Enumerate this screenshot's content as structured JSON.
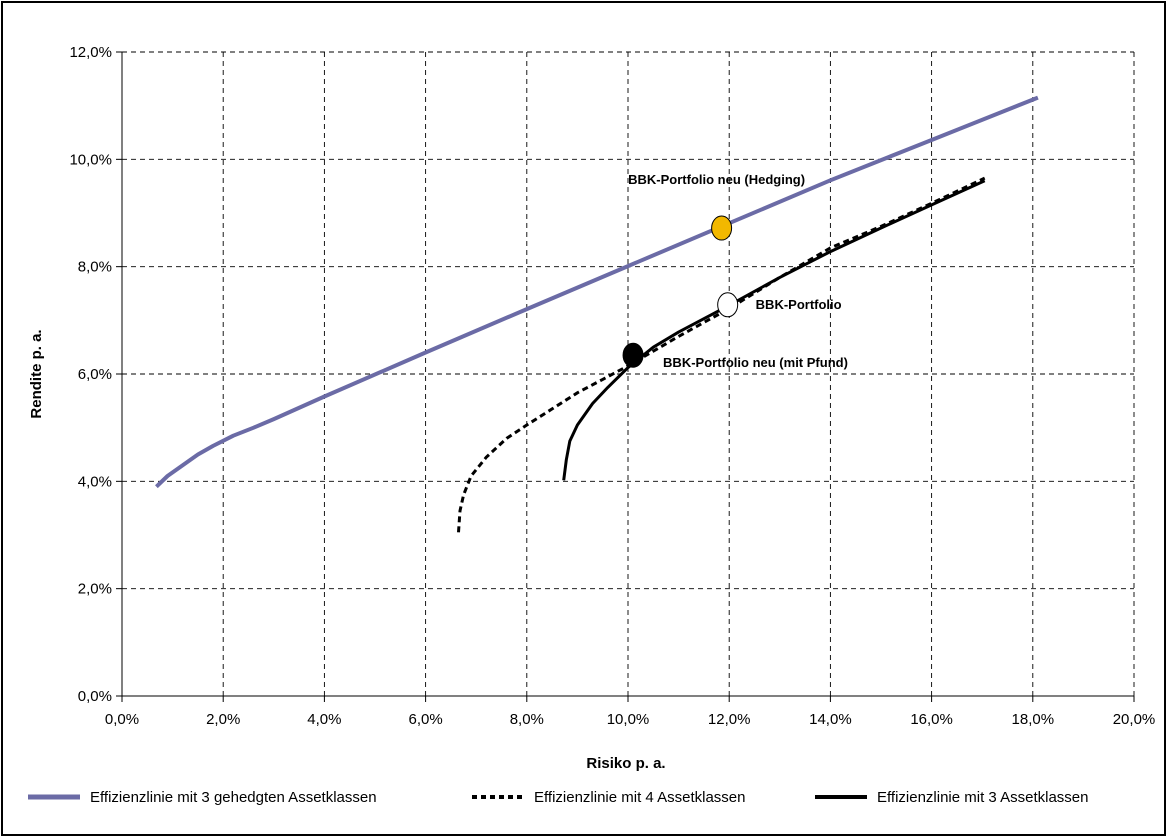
{
  "chart_data": {
    "type": "line",
    "title": "",
    "xlabel": "Risiko p. a.",
    "ylabel": "Rendite p. a.",
    "xlim": [
      0,
      0.2
    ],
    "ylim": [
      0,
      0.12
    ],
    "xticks": [
      0,
      0.02,
      0.04,
      0.06,
      0.08,
      0.1,
      0.12,
      0.14,
      0.16,
      0.18,
      0.2
    ],
    "yticks": [
      0,
      0.02,
      0.04,
      0.06,
      0.08,
      0.1,
      0.12
    ],
    "xtick_labels": [
      "0,0%",
      "2,0%",
      "4,0%",
      "6,0%",
      "8,0%",
      "10,0%",
      "12,0%",
      "14,0%",
      "16,0%",
      "18,0%",
      "20,0%"
    ],
    "ytick_labels": [
      "0,0%",
      "2,0%",
      "4,0%",
      "6,0%",
      "8,0%",
      "10,0%",
      "12,0%"
    ],
    "grid": true,
    "legend_position": "bottom",
    "series": [
      {
        "name": "Effizienzlinie mit 3 gehedgten Assetklassen",
        "color": "#6b6ba6",
        "style": "solid",
        "x": [
          0.0068,
          0.009,
          0.012,
          0.015,
          0.018,
          0.022,
          0.026,
          0.03,
          0.04,
          0.06,
          0.08,
          0.1,
          0.12,
          0.14,
          0.16,
          0.181
        ],
        "y": [
          0.039,
          0.041,
          0.043,
          0.045,
          0.0466,
          0.0485,
          0.05,
          0.0516,
          0.0558,
          0.064,
          0.0721,
          0.0801,
          0.0881,
          0.0961,
          0.1036,
          0.1115
        ]
      },
      {
        "name": "Effizienzlinie mit 4 Assetklassen",
        "color": "#000000",
        "style": "dotted",
        "x": [
          0.0665,
          0.0668,
          0.0675,
          0.069,
          0.072,
          0.076,
          0.08,
          0.085,
          0.09,
          0.095,
          0.1,
          0.11,
          0.12,
          0.13,
          0.14,
          0.15,
          0.16,
          0.1705
        ],
        "y": [
          0.0305,
          0.0345,
          0.0375,
          0.041,
          0.0445,
          0.048,
          0.0505,
          0.0535,
          0.0565,
          0.059,
          0.0615,
          0.067,
          0.0722,
          0.078,
          0.0835,
          0.0875,
          0.0918,
          0.0965
        ]
      },
      {
        "name": "Effizienzlinie mit 3 Assetklassen",
        "color": "#000000",
        "style": "solid",
        "x": [
          0.0873,
          0.0878,
          0.0885,
          0.09,
          0.093,
          0.096,
          0.1,
          0.105,
          0.11,
          0.12,
          0.13,
          0.14,
          0.15,
          0.16,
          0.1705
        ],
        "y": [
          0.0402,
          0.044,
          0.0475,
          0.0505,
          0.0545,
          0.0575,
          0.0612,
          0.065,
          0.0678,
          0.0728,
          0.078,
          0.0828,
          0.0872,
          0.0915,
          0.096
        ]
      }
    ],
    "points": [
      {
        "label": "BBK-Portfolio neu (Hedging)",
        "x": 0.1185,
        "y": 0.0872,
        "fill": "#f2b800",
        "label_anchor": "above"
      },
      {
        "label": "BBK-Portfolio",
        "x": 0.1197,
        "y": 0.0729,
        "fill": "#ffffff",
        "label_anchor": "right"
      },
      {
        "label": "BBK-Portfolio neu (mit Pfund)",
        "x": 0.101,
        "y": 0.0635,
        "fill": "#000000",
        "label_anchor": "below-right"
      }
    ]
  }
}
